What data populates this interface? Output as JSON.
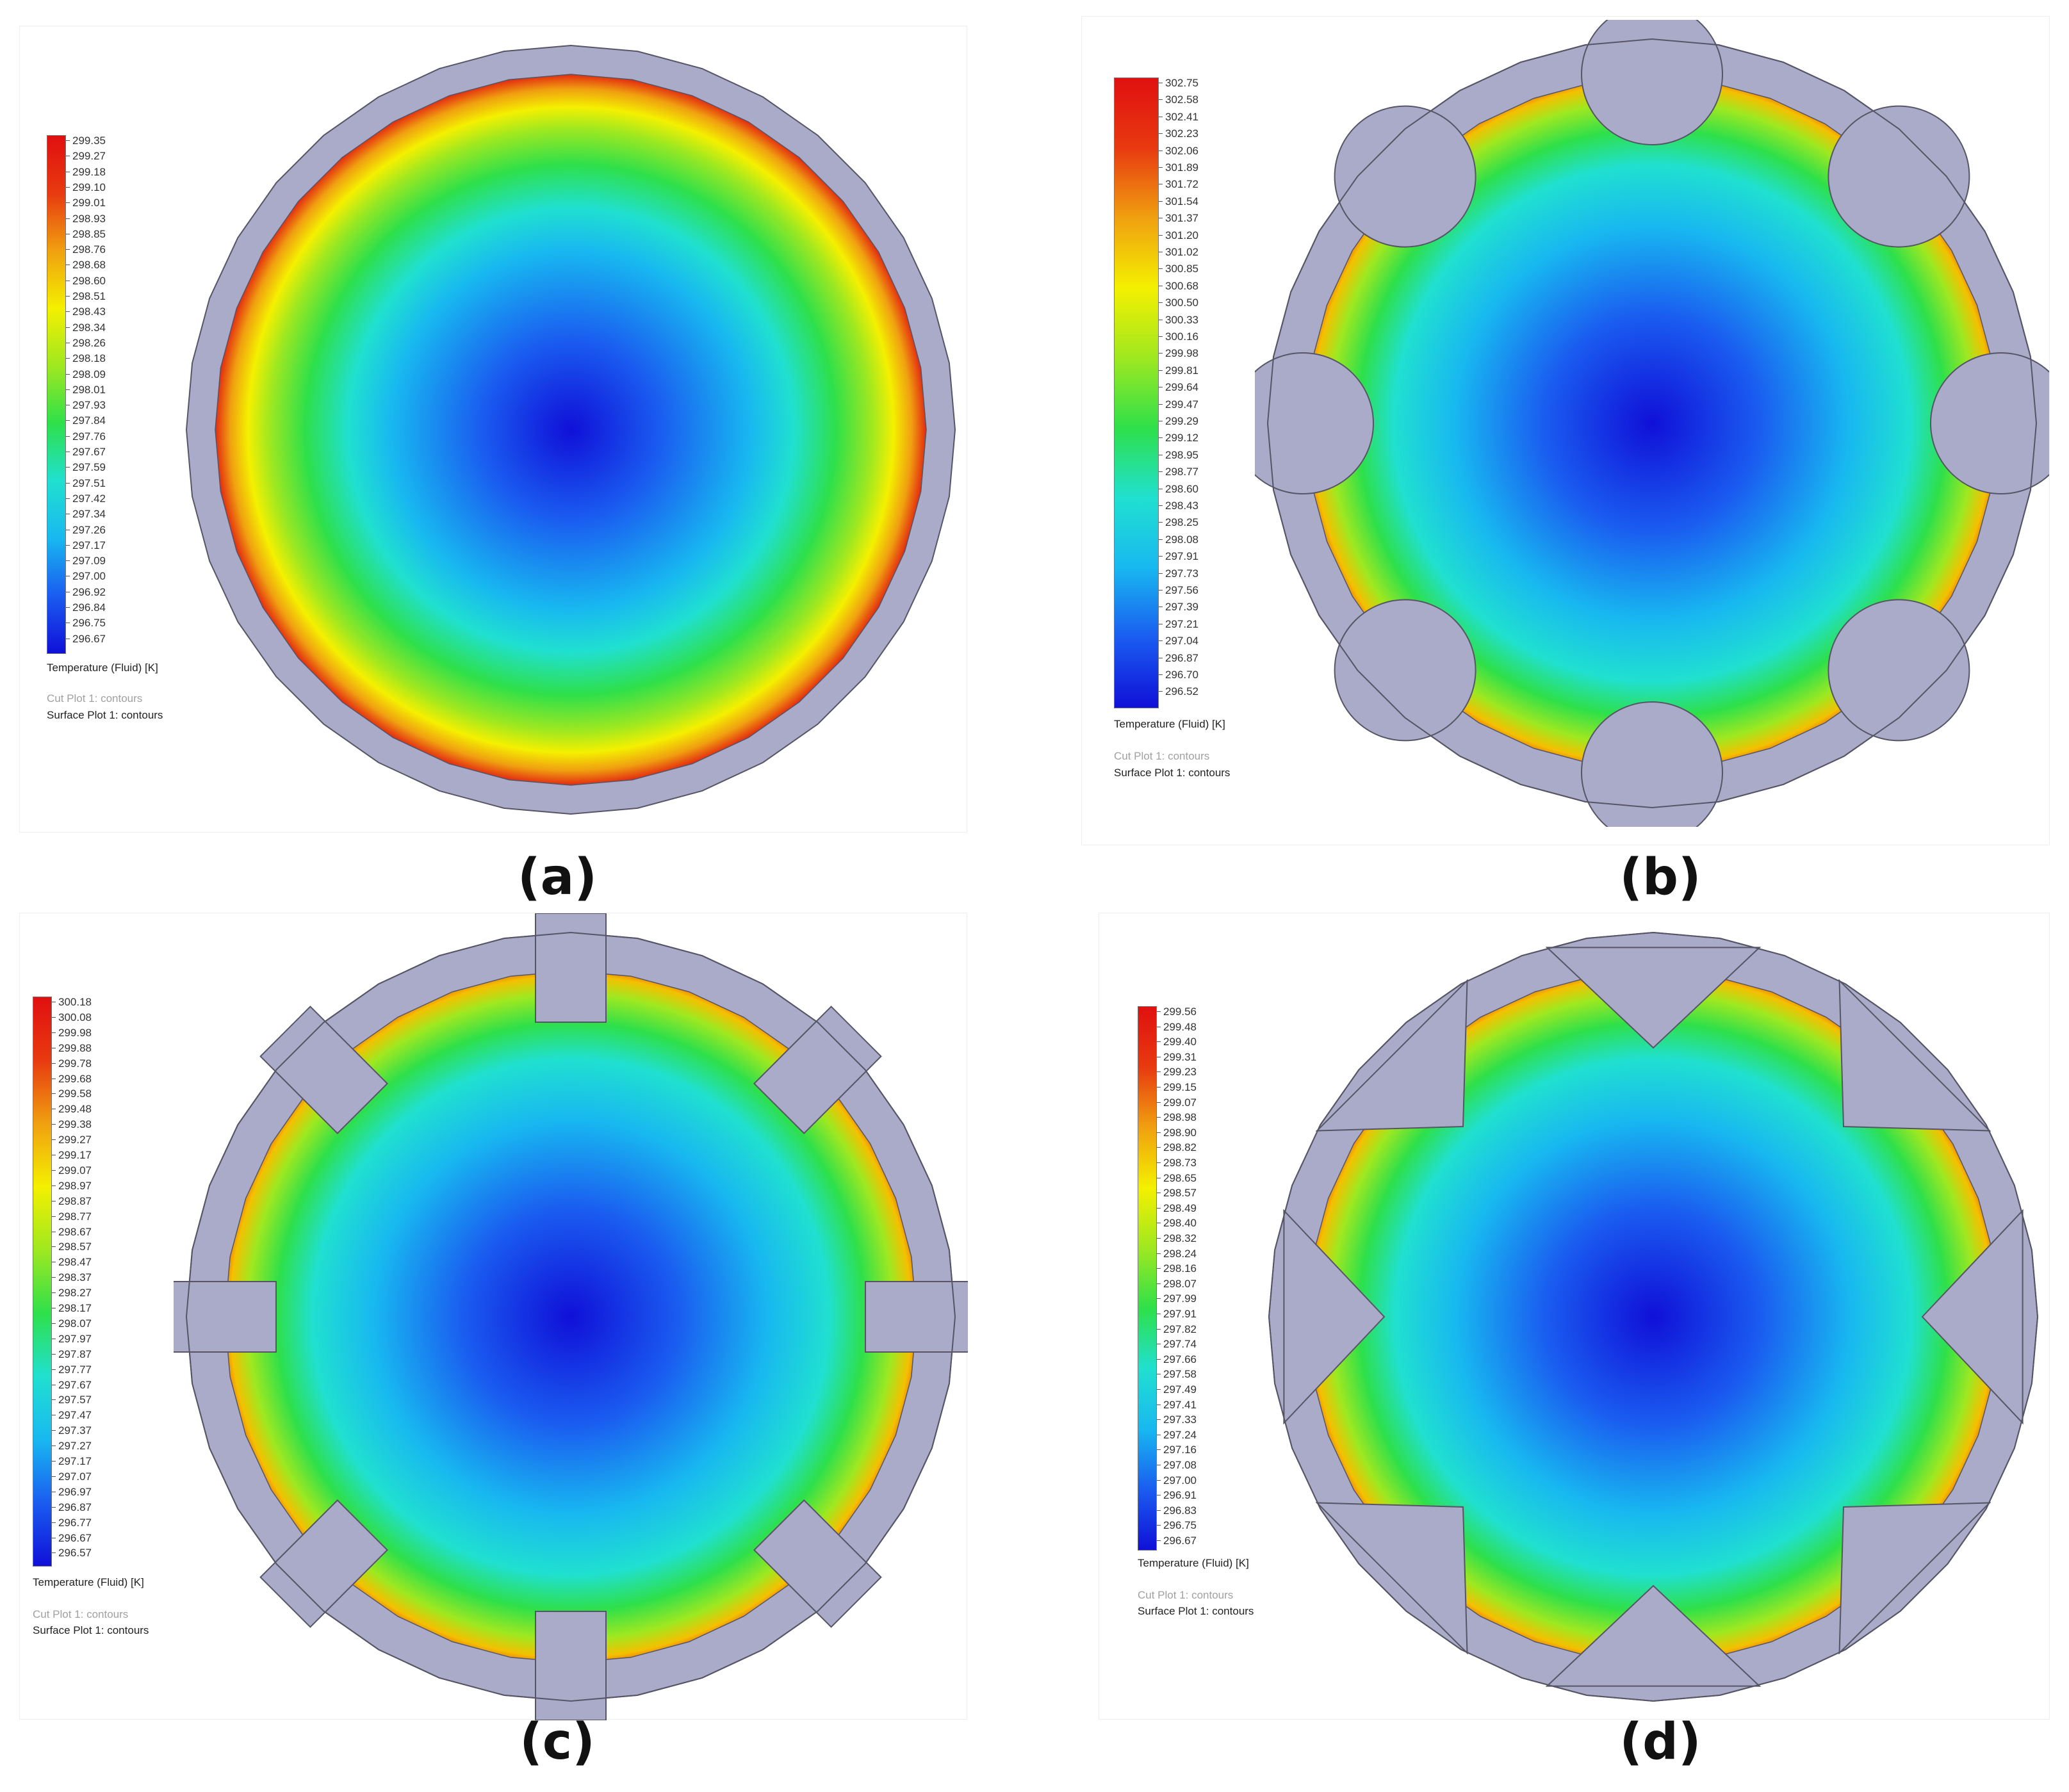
{
  "colors": {
    "solid": "#a9abc8",
    "outline": "#555566",
    "scale": [
      "#1010d8",
      "#1a5cf0",
      "#18b8f0",
      "#20e0d0",
      "#2ee04a",
      "#9fe820",
      "#f4f000",
      "#f0a010",
      "#e83a10",
      "#e01010"
    ]
  },
  "panels": [
    {
      "label": "(a)",
      "geometry_icon": "plain-circle-channel",
      "legend": {
        "ticks": [
          "299.35",
          "299.27",
          "299.18",
          "299.10",
          "299.01",
          "298.93",
          "298.85",
          "298.76",
          "298.68",
          "298.60",
          "298.51",
          "298.43",
          "298.34",
          "298.26",
          "298.18",
          "298.09",
          "298.01",
          "297.93",
          "297.84",
          "297.76",
          "297.67",
          "297.59",
          "297.51",
          "297.42",
          "297.34",
          "297.26",
          "297.17",
          "297.09",
          "297.00",
          "296.92",
          "296.84",
          "296.75",
          "296.67"
        ],
        "title": "Temperature (Fluid) [K]",
        "cut": "Cut Plot 1: contours",
        "surface": "Surface Plot 1: contours"
      }
    },
    {
      "label": "(b)",
      "geometry_icon": "semicircular-fins-channel",
      "legend": {
        "ticks": [
          "302.75",
          "302.58",
          "302.41",
          "302.23",
          "302.06",
          "301.89",
          "301.72",
          "301.54",
          "301.37",
          "301.20",
          "301.02",
          "300.85",
          "300.68",
          "300.50",
          "300.33",
          "300.16",
          "299.98",
          "299.81",
          "299.64",
          "299.47",
          "299.29",
          "299.12",
          "298.95",
          "298.77",
          "298.60",
          "298.43",
          "298.25",
          "298.08",
          "297.91",
          "297.73",
          "297.56",
          "297.39",
          "297.21",
          "297.04",
          "296.87",
          "296.70",
          "296.52"
        ],
        "title": "Temperature (Fluid) [K]",
        "cut": "Cut Plot 1: contours",
        "surface": "Surface Plot 1: contours"
      }
    },
    {
      "label": "(c)",
      "geometry_icon": "rectangular-fins-channel",
      "legend": {
        "ticks": [
          "300.18",
          "300.08",
          "299.98",
          "299.88",
          "299.78",
          "299.68",
          "299.58",
          "299.48",
          "299.38",
          "299.27",
          "299.17",
          "299.07",
          "298.97",
          "298.87",
          "298.77",
          "298.67",
          "298.57",
          "298.47",
          "298.37",
          "298.27",
          "298.17",
          "298.07",
          "297.97",
          "297.87",
          "297.77",
          "297.67",
          "297.57",
          "297.47",
          "297.37",
          "297.27",
          "297.17",
          "297.07",
          "296.97",
          "296.87",
          "296.77",
          "296.67",
          "296.57"
        ],
        "title": "Temperature (Fluid) [K]",
        "cut": "Cut Plot 1: contours",
        "surface": "Surface Plot 1: contours"
      }
    },
    {
      "label": "(d)",
      "geometry_icon": "triangular-fins-channel",
      "legend": {
        "ticks": [
          "299.56",
          "299.48",
          "299.40",
          "299.31",
          "299.23",
          "299.15",
          "299.07",
          "298.98",
          "298.90",
          "298.82",
          "298.73",
          "298.65",
          "298.57",
          "298.49",
          "298.40",
          "298.32",
          "298.24",
          "298.16",
          "298.07",
          "297.99",
          "297.91",
          "297.82",
          "297.74",
          "297.66",
          "297.58",
          "297.49",
          "297.41",
          "297.33",
          "297.24",
          "297.16",
          "297.08",
          "297.00",
          "296.91",
          "296.83",
          "296.75",
          "296.67"
        ],
        "title": "Temperature (Fluid) [K]",
        "cut": "Cut Plot 1: contours",
        "surface": "Surface Plot 1: contours"
      }
    }
  ]
}
